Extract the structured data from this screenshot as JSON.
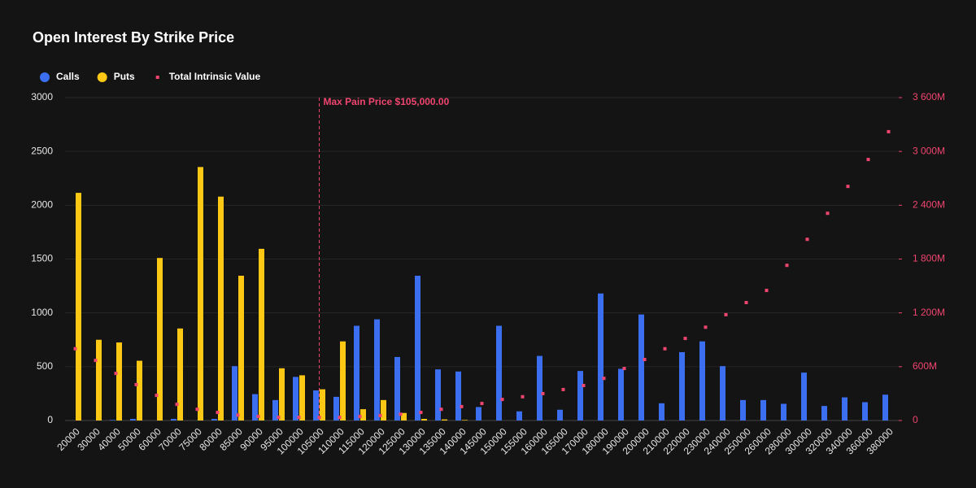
{
  "chart_data": {
    "type": "bar",
    "title": "Open Interest By Strike Price",
    "categories": [
      "20000",
      "30000",
      "40000",
      "50000",
      "60000",
      "70000",
      "75000",
      "80000",
      "85000",
      "90000",
      "95000",
      "100000",
      "105000",
      "110000",
      "115000",
      "120000",
      "125000",
      "130000",
      "135000",
      "140000",
      "145000",
      "150000",
      "155000",
      "160000",
      "165000",
      "170000",
      "180000",
      "190000",
      "200000",
      "210000",
      "220000",
      "230000",
      "240000",
      "250000",
      "260000",
      "280000",
      "300000",
      "320000",
      "340000",
      "360000",
      "380000"
    ],
    "series": [
      {
        "name": "Calls",
        "color": "#3b6ff0",
        "values": [
          0,
          0,
          5,
          15,
          0,
          15,
          0,
          15,
          505,
          245,
          190,
          405,
          280,
          220,
          880,
          940,
          590,
          1345,
          475,
          455,
          125,
          880,
          85,
          600,
          100,
          460,
          1180,
          480,
          985,
          160,
          635,
          735,
          505,
          190,
          190,
          155,
          445,
          135,
          215,
          170,
          240
        ]
      },
      {
        "name": "Puts",
        "color": "#fcc813",
        "values": [
          2115,
          750,
          725,
          555,
          1510,
          855,
          2355,
          2080,
          1345,
          1595,
          485,
          420,
          290,
          735,
          105,
          190,
          70,
          15,
          10,
          5,
          0,
          0,
          0,
          0,
          0,
          0,
          0,
          0,
          0,
          0,
          0,
          0,
          0,
          0,
          0,
          0,
          0,
          0,
          0,
          0,
          0
        ]
      },
      {
        "name": "Total Intrinsic Value",
        "color": "#f0456f",
        "type": "scatter",
        "axis": "y2",
        "values": [
          800,
          670,
          525,
          400,
          280,
          180,
          125,
          90,
          60,
          45,
          35,
          35,
          35,
          35,
          45,
          55,
          70,
          90,
          125,
          155,
          190,
          235,
          265,
          300,
          345,
          390,
          470,
          580,
          680,
          800,
          915,
          1040,
          1180,
          1315,
          1450,
          1730,
          2020,
          2310,
          2610,
          2910,
          3220
        ]
      }
    ],
    "ylim": [
      0,
      3000
    ],
    "yticks": [
      0,
      500,
      1000,
      1500,
      2000,
      2500,
      3000
    ],
    "y2lim": [
      0,
      3600
    ],
    "y2ticks": [
      0,
      {
        "value": 600,
        "label": "600M"
      },
      {
        "value": 1200,
        "label": "1 200M"
      },
      {
        "value": 1800,
        "label": "1 800M"
      },
      {
        "value": 2400,
        "label": "2 400M"
      },
      {
        "value": 3000,
        "label": "3 000M"
      },
      {
        "value": 3600,
        "label": "3 600M"
      }
    ],
    "grid": true,
    "annotation": {
      "text": "Max Pain Price $105,000.00",
      "category": "105000",
      "color": "#f0456f"
    }
  }
}
